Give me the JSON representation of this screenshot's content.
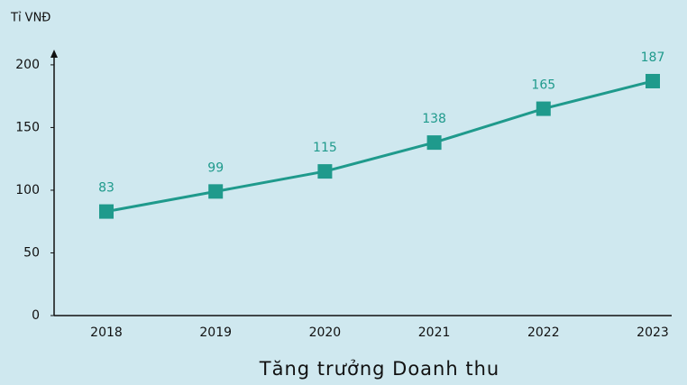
{
  "chart_data": {
    "type": "line",
    "title": "Tăng trưởng Doanh thu",
    "y_label": "Tỉ VNĐ",
    "categories": [
      "2018",
      "2019",
      "2020",
      "2021",
      "2022",
      "2023"
    ],
    "values": [
      83,
      99,
      115,
      138,
      165,
      187
    ],
    "color": "#1f9a8c",
    "ylim": [
      0,
      210
    ],
    "yticks": [
      0,
      50,
      100,
      150,
      200
    ],
    "grid": false
  }
}
